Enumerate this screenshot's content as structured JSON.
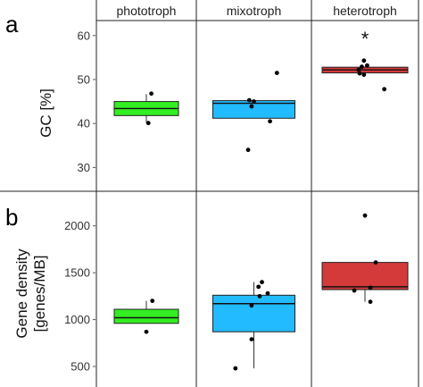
{
  "chart_data": {
    "type": "box",
    "categories": [
      "phototroph",
      "mixotroph",
      "heterotroph"
    ],
    "colors": {
      "phototroph": "#33ee22",
      "mixotroph": "#22bbff",
      "heterotroph": "#d43a3a"
    },
    "panels": [
      {
        "letter": "a",
        "ylabel": "GC [%]",
        "ylim": [
          25,
          63
        ],
        "yticks": [
          30,
          40,
          50,
          60
        ],
        "significance": {
          "heterotroph": "*"
        },
        "boxes": [
          {
            "category": "phototroph",
            "q1": 41.8,
            "median": 43.4,
            "q3": 45.0,
            "whisker_low": 40.2,
            "whisker_high": 46.7
          },
          {
            "category": "mixotroph",
            "q1": 41.2,
            "median": 44.6,
            "q3": 45.2,
            "whisker_low": 41.2,
            "whisker_high": 45.2
          },
          {
            "category": "heterotroph",
            "q1": 51.5,
            "median": 52.2,
            "q3": 52.8,
            "whisker_low": 51.2,
            "whisker_high": 53.0
          }
        ],
        "points": [
          {
            "category": "phototroph",
            "y": 46.8,
            "jitter": 0.05
          },
          {
            "category": "phototroph",
            "y": 40.1,
            "jitter": 0.02
          },
          {
            "category": "mixotroph",
            "y": 51.5,
            "jitter": 0.2
          },
          {
            "category": "mixotroph",
            "y": 45.3,
            "jitter": -0.04
          },
          {
            "category": "mixotroph",
            "y": 45.0,
            "jitter": 0.0
          },
          {
            "category": "mixotroph",
            "y": 43.9,
            "jitter": -0.02
          },
          {
            "category": "mixotroph",
            "y": 40.5,
            "jitter": 0.14
          },
          {
            "category": "mixotroph",
            "y": 34.0,
            "jitter": -0.05
          },
          {
            "category": "heterotroph",
            "y": 54.3,
            "jitter": -0.01
          },
          {
            "category": "heterotroph",
            "y": 53.2,
            "jitter": 0.02
          },
          {
            "category": "heterotroph",
            "y": 52.9,
            "jitter": -0.03
          },
          {
            "category": "heterotroph",
            "y": 52.2,
            "jitter": -0.06
          },
          {
            "category": "heterotroph",
            "y": 51.4,
            "jitter": -0.05
          },
          {
            "category": "heterotroph",
            "y": 51.1,
            "jitter": -0.01
          },
          {
            "category": "heterotroph",
            "y": 47.8,
            "jitter": 0.18
          }
        ]
      },
      {
        "letter": "b",
        "ylabel_lines": [
          "Gene density",
          "[genes/MB]"
        ],
        "ylim": [
          300,
          2350
        ],
        "yticks": [
          500,
          1000,
          1500,
          2000
        ],
        "boxes": [
          {
            "category": "phototroph",
            "q1": 960,
            "median": 1020,
            "q3": 1110,
            "whisker_low": 960,
            "whisker_high": 1200
          },
          {
            "category": "mixotroph",
            "q1": 870,
            "median": 1170,
            "q3": 1260,
            "whisker_low": 480,
            "whisker_high": 1400
          },
          {
            "category": "heterotroph",
            "q1": 1320,
            "median": 1350,
            "q3": 1610,
            "whisker_low": 1190,
            "whisker_high": 1610
          }
        ],
        "points": [
          {
            "category": "phototroph",
            "y": 1200,
            "jitter": 0.06
          },
          {
            "category": "phototroph",
            "y": 870,
            "jitter": 0.0
          },
          {
            "category": "mixotroph",
            "y": 1400,
            "jitter": 0.07
          },
          {
            "category": "mixotroph",
            "y": 1350,
            "jitter": 0.04
          },
          {
            "category": "mixotroph",
            "y": 1280,
            "jitter": 0.12
          },
          {
            "category": "mixotroph",
            "y": 1250,
            "jitter": 0.05
          },
          {
            "category": "mixotroph",
            "y": 1150,
            "jitter": -0.02
          },
          {
            "category": "mixotroph",
            "y": 790,
            "jitter": -0.02
          },
          {
            "category": "mixotroph",
            "y": 480,
            "jitter": -0.16
          },
          {
            "category": "heterotroph",
            "y": 2110,
            "jitter": 0.0
          },
          {
            "category": "heterotroph",
            "y": 1610,
            "jitter": 0.1
          },
          {
            "category": "heterotroph",
            "y": 1340,
            "jitter": 0.05
          },
          {
            "category": "heterotroph",
            "y": 1310,
            "jitter": -0.1
          },
          {
            "category": "heterotroph",
            "y": 1190,
            "jitter": 0.05
          }
        ]
      }
    ]
  }
}
